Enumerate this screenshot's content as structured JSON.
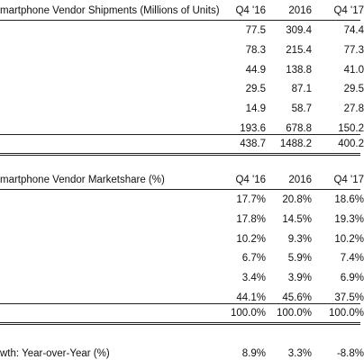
{
  "tables": [
    {
      "title": "martphone Vendor Shipments (Millions of Units)",
      "columns": [
        "Q4 '16",
        "2016",
        "Q4 '17"
      ],
      "rows": [
        [
          "77.5",
          "309.4",
          "74.4"
        ],
        [
          "78.3",
          "215.4",
          "77.3"
        ],
        [
          "44.9",
          "138.8",
          "41.0"
        ],
        [
          "29.5",
          "87.1",
          "29.5"
        ],
        [
          "14.9",
          "58.7",
          "27.8"
        ],
        [
          "193.6",
          "678.8",
          "150.2"
        ]
      ],
      "total": [
        "438.7",
        "1488.2",
        "400.2"
      ]
    },
    {
      "title": "martphone Vendor Marketshare (%)",
      "columns": [
        "Q4 '16",
        "2016",
        "Q4 '17"
      ],
      "rows": [
        [
          "17.7%",
          "20.8%",
          "18.6%"
        ],
        [
          "17.8%",
          "14.5%",
          "19.3%"
        ],
        [
          "10.2%",
          "9.3%",
          "10.2%"
        ],
        [
          "6.7%",
          "5.9%",
          "7.4%"
        ],
        [
          "3.4%",
          "3.9%",
          "6.9%"
        ],
        [
          "44.1%",
          "45.6%",
          "37.5%"
        ]
      ],
      "total": [
        "100.0%",
        "100.0%",
        "100.0%"
      ]
    }
  ],
  "growth": {
    "label": "wth: Year-over-Year (%)",
    "values": [
      "8.9%",
      "3.3%",
      "-8.8%"
    ]
  }
}
